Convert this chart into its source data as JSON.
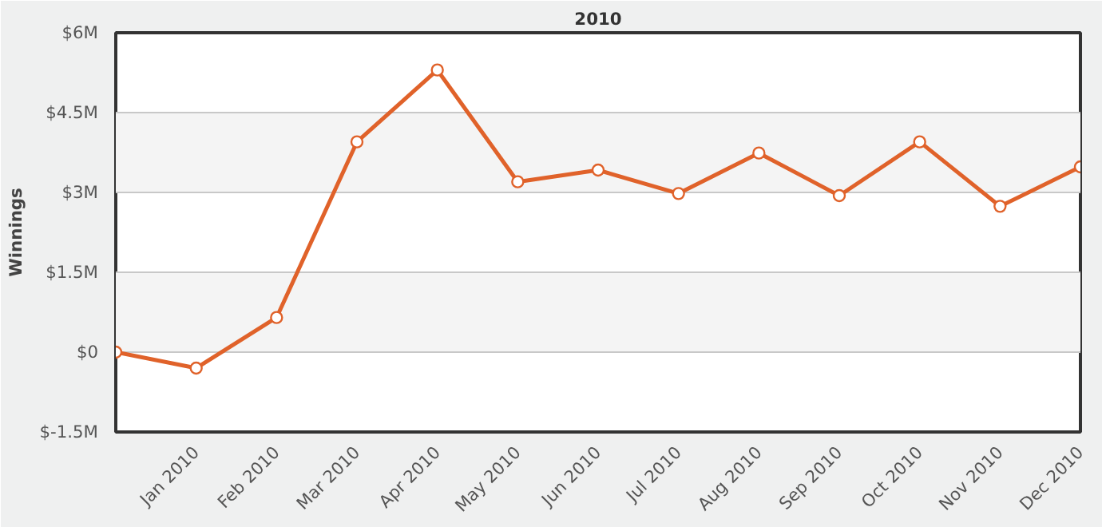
{
  "chart_data": {
    "type": "line",
    "title": "2010",
    "ylabel": "Winnings",
    "categories": [
      null,
      "Jan 2010",
      "Feb 2010",
      "Mar 2010",
      "Apr 2010",
      "May 2010",
      "Jun 2010",
      "Jul 2010",
      "Aug 2010",
      "Sep 2010",
      "Oct 2010",
      "Nov 2010",
      "Dec 2010"
    ],
    "series": [
      {
        "color": "#e0622a",
        "values": [
          0,
          -0.3,
          0.65,
          3.95,
          5.3,
          3.2,
          3.42,
          2.98,
          3.74,
          2.94,
          3.95,
          2.74,
          3.48
        ]
      }
    ],
    "ylim": [
      -1.5,
      6
    ],
    "yticks": [
      {
        "value": -1.5,
        "label": "$-1.5M"
      },
      {
        "value": 0,
        "label": "$0"
      },
      {
        "value": 1.5,
        "label": "$1.5M"
      },
      {
        "value": 3,
        "label": "$3M"
      },
      {
        "value": 4.5,
        "label": "$4.5M"
      },
      {
        "value": 6,
        "label": "$6M"
      }
    ],
    "grid": "y",
    "marker": "circle",
    "line_style": "solid"
  }
}
